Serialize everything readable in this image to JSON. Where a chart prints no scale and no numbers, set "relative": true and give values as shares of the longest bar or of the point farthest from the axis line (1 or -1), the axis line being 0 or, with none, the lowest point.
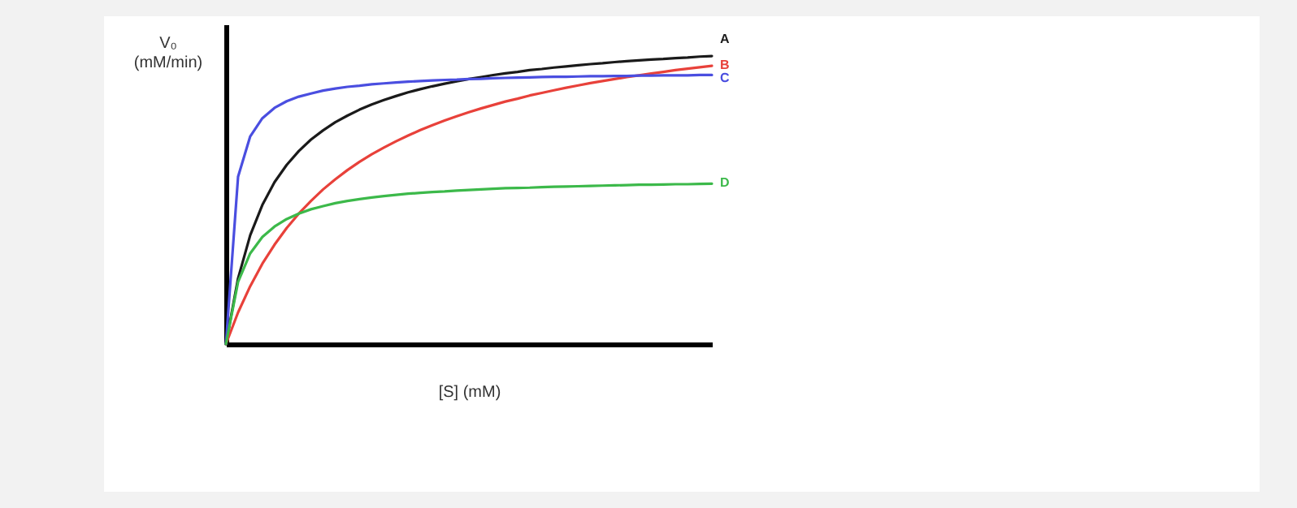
{
  "chart_data": {
    "type": "line",
    "relative": true,
    "xlabel": "[S]    (mM)",
    "ylabel": "V₀ (mM/min)",
    "marker": "none",
    "line_style": "solid",
    "categories": [
      null,
      null,
      null,
      null,
      null,
      null,
      null,
      null,
      null,
      null,
      null,
      null,
      null,
      null,
      null,
      null,
      null,
      null,
      null,
      null,
      null,
      null,
      null,
      null,
      null,
      null,
      null,
      null,
      null,
      null,
      null,
      null,
      null,
      null,
      null,
      null,
      null,
      null,
      null,
      null,
      null
    ],
    "series": [
      {
        "name": "A",
        "color": "#1a1a1a",
        "values": [
          0,
          0.228,
          0.378,
          0.483,
          0.562,
          0.622,
          0.67,
          0.71,
          0.742,
          0.77,
          0.793,
          0.814,
          0.832,
          0.847,
          0.861,
          0.874,
          0.885,
          0.895,
          0.904,
          0.912,
          0.92,
          0.927,
          0.934,
          0.94,
          0.945,
          0.951,
          0.955,
          0.96,
          0.964,
          0.968,
          0.972,
          0.975,
          0.979,
          0.982,
          0.985,
          0.988,
          0.99,
          0.993,
          0.995,
          0.998,
          1
        ]
      },
      {
        "name": "B",
        "color": "#e8413a",
        "values": [
          0,
          0.11,
          0.201,
          0.279,
          0.345,
          0.403,
          0.453,
          0.497,
          0.537,
          0.572,
          0.604,
          0.633,
          0.659,
          0.682,
          0.704,
          0.724,
          0.743,
          0.76,
          0.776,
          0.791,
          0.805,
          0.818,
          0.83,
          0.842,
          0.852,
          0.863,
          0.872,
          0.881,
          0.89,
          0.898,
          0.906,
          0.913,
          0.92,
          0.927,
          0.933,
          0.939,
          0.945,
          0.951,
          0.956,
          0.961,
          0.966
        ]
      },
      {
        "name": "C",
        "color": "#4a4ee0",
        "values": [
          0,
          0.581,
          0.721,
          0.784,
          0.82,
          0.843,
          0.859,
          0.87,
          0.88,
          0.887,
          0.893,
          0.897,
          0.902,
          0.905,
          0.908,
          0.911,
          0.913,
          0.915,
          0.917,
          0.918,
          0.92,
          0.921,
          0.923,
          0.924,
          0.925,
          0.926,
          0.927,
          0.928,
          0.928,
          0.929,
          0.93,
          0.93,
          0.931,
          0.931,
          0.932,
          0.932,
          0.933,
          0.933,
          0.933,
          0.934,
          0.934
        ]
      },
      {
        "name": "D",
        "color": "#3cb94a",
        "values": [
          0,
          0.216,
          0.315,
          0.372,
          0.408,
          0.434,
          0.453,
          0.468,
          0.479,
          0.489,
          0.497,
          0.503,
          0.509,
          0.514,
          0.518,
          0.522,
          0.525,
          0.528,
          0.53,
          0.533,
          0.535,
          0.537,
          0.539,
          0.541,
          0.542,
          0.543,
          0.545,
          0.546,
          0.547,
          0.548,
          0.549,
          0.55,
          0.551,
          0.552,
          0.553,
          0.553,
          0.554,
          0.555,
          0.555,
          0.556,
          0.557
        ]
      }
    ]
  }
}
